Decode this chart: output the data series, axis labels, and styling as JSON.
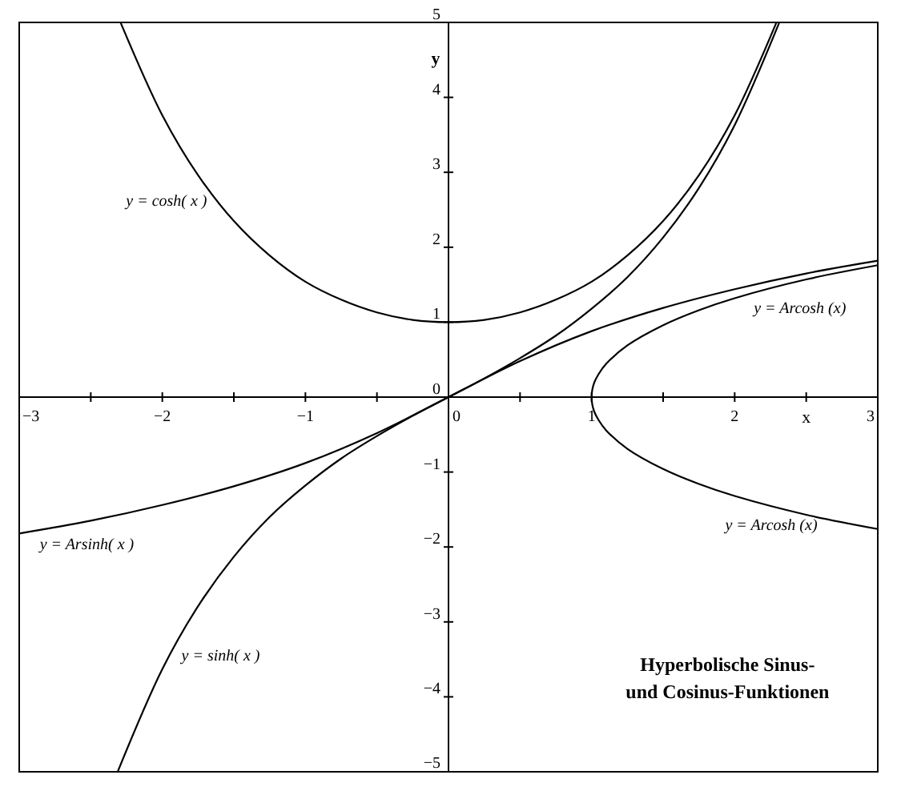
{
  "chart_data": {
    "type": "line",
    "title": "Hyperbolische Sinus-\nund Cosinus-Funktionen",
    "xlabel": "x",
    "ylabel": "y",
    "xlim": [
      -3,
      3
    ],
    "ylim": [
      -5,
      5
    ],
    "xticks": [
      -3,
      {
        "value": -2.5,
        "label": null
      },
      -2,
      {
        "value": -1.5,
        "label": null
      },
      -1,
      {
        "value": -0.5,
        "label": null
      },
      0,
      {
        "value": 0.5,
        "label": null
      },
      1,
      {
        "value": 1.5,
        "label": null
      },
      2,
      {
        "value": 2.5,
        "label": null
      },
      3
    ],
    "yticks": [
      -5,
      -4,
      -3,
      -2,
      -1,
      0,
      1,
      2,
      3,
      4,
      5
    ],
    "grid": false,
    "marker": "none",
    "line_style": "solid",
    "series": [
      {
        "color": "#000000",
        "x": [
          -2.29,
          -2,
          -1.75,
          -1.5,
          -1.25,
          -1,
          -0.75,
          -0.5,
          -0.25,
          0,
          0.25,
          0.5,
          0.75,
          1,
          1.25,
          1.5,
          1.75,
          2,
          2.29
        ],
        "values": [
          4.99,
          3.76,
          2.96,
          2.35,
          1.89,
          1.54,
          1.3,
          1.13,
          1.03,
          1,
          1.03,
          1.13,
          1.3,
          1.54,
          1.89,
          2.35,
          2.96,
          3.76,
          4.99
        ]
      },
      {
        "color": "#000000",
        "x": [
          -2.31,
          -2,
          -1.75,
          -1.5,
          -1.25,
          -1,
          -0.75,
          -0.5,
          -0.25,
          0,
          0.25,
          0.5,
          0.75,
          1,
          1.25,
          1.5,
          1.75,
          2,
          2.31
        ],
        "values": [
          -4.99,
          -3.63,
          -2.79,
          -2.13,
          -1.6,
          -1.18,
          -0.82,
          -0.52,
          -0.25,
          0,
          0.25,
          0.52,
          0.82,
          1.18,
          1.6,
          2.13,
          2.79,
          3.63,
          4.99
        ]
      },
      {
        "color": "#000000",
        "x": [
          -3,
          -2.5,
          -2,
          -1.5,
          -1,
          -0.5,
          0,
          0.5,
          1,
          1.5,
          2,
          2.5,
          3
        ],
        "values": [
          -1.82,
          -1.65,
          -1.44,
          -1.19,
          -0.88,
          -0.48,
          0,
          0.48,
          0.88,
          1.19,
          1.44,
          1.65,
          1.82
        ]
      },
      {
        "color": "#000000",
        "x": [
          1,
          1.005,
          1.02,
          1.05,
          1.1,
          1.25,
          1.5,
          1.75,
          2,
          2.5,
          3
        ],
        "values": [
          0,
          0.1,
          0.2,
          0.31,
          0.44,
          0.69,
          0.96,
          1.16,
          1.32,
          1.57,
          1.76
        ]
      },
      {
        "color": "#000000",
        "x": [
          1,
          1.005,
          1.02,
          1.05,
          1.1,
          1.25,
          1.5,
          1.75,
          2,
          2.5,
          3
        ],
        "values": [
          0,
          -0.1,
          -0.2,
          -0.31,
          -0.44,
          -0.69,
          -0.96,
          -1.16,
          -1.32,
          -1.57,
          -1.76
        ]
      }
    ],
    "annotations": [
      {
        "text": "y = cosh( x )",
        "x": -1.62,
        "y": 2.62
      },
      {
        "text": "y = Arcosh (x)",
        "x": 2.1,
        "y": 1.37
      },
      {
        "text": "y = Arcosh (x)",
        "x": 1.9,
        "y": -1.26
      },
      {
        "text": "y = Arsinh( x )",
        "x": -2.89,
        "y": -1.78
      },
      {
        "text": "y = sinh( x )",
        "x": -1.9,
        "y": -3.27
      }
    ]
  }
}
